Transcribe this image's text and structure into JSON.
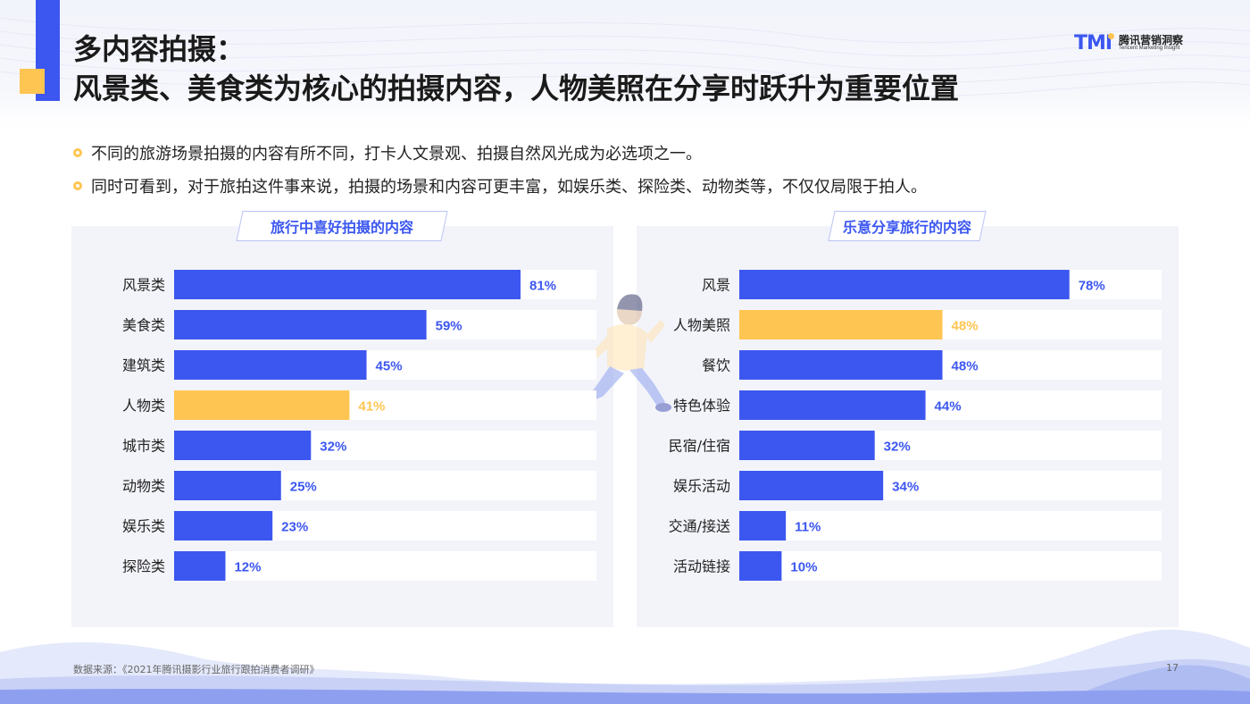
{
  "header": {
    "title_line1": "多内容拍摄：",
    "title_line2": "风景类、美食类为核心的拍摄内容，人物美照在分享时跃升为重要位置"
  },
  "logo": {
    "mark": "TMI",
    "cn": "腾讯营销洞察",
    "en": "Tencent Marketing Insight"
  },
  "bullets": [
    "不同的旅游场景拍摄的内容有所不同，打卡人文景观、拍摄自然风光成为必选项之一。",
    "同时可看到，对于旅拍这件事来说，拍摄的场景和内容可更丰富，如娱乐类、探险类、动物类等，不仅仅局限于拍人。"
  ],
  "colors": {
    "blue": "#3c57f0",
    "yellow": "#ffc552",
    "track": "#ffffff"
  },
  "chart_data": [
    {
      "type": "bar",
      "orientation": "horizontal",
      "title": "旅行中喜好拍摄的内容",
      "unit": "%",
      "xlim": [
        0,
        100
      ],
      "categories": [
        "风景类",
        "美食类",
        "建筑类",
        "人物类",
        "城市类",
        "动物类",
        "娱乐类",
        "探险类"
      ],
      "values": [
        81,
        59,
        45,
        41,
        32,
        25,
        23,
        12
      ],
      "labels": [
        "81%",
        "59%",
        "45%",
        "41%",
        "32%",
        "25%",
        "23%",
        "12%"
      ],
      "highlight": [
        "人物类"
      ]
    },
    {
      "type": "bar",
      "orientation": "horizontal",
      "title": "乐意分享旅行的内容",
      "unit": "%",
      "xlim": [
        0,
        100
      ],
      "categories": [
        "风景",
        "人物美照",
        "餐饮",
        "特色体验",
        "民宿/住宿",
        "娱乐活动",
        "交通/接送",
        "活动链接"
      ],
      "values": [
        78,
        48,
        48,
        44,
        32,
        34,
        11,
        10
      ],
      "labels": [
        "78%",
        "48%",
        "48%",
        "44%",
        "32%",
        "34%",
        "11%",
        "10%"
      ],
      "highlight": [
        "人物美照"
      ]
    }
  ],
  "footer": {
    "source": "数据来源：《2021年腾讯摄影行业旅行跟拍消费者调研》",
    "page": "17"
  }
}
